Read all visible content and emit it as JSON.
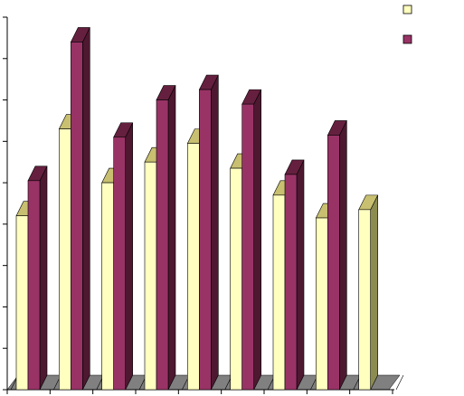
{
  "chart_data": {
    "type": "bar",
    "style": "3d-clustered-column",
    "title": "",
    "xlabel": "",
    "ylabel": "",
    "categories": [
      "",
      "",
      "",
      "",
      "",
      "",
      "",
      "",
      ""
    ],
    "ylim": [
      0,
      9
    ],
    "grid": false,
    "legend_position": "top-right",
    "series": [
      {
        "color": "#FFFFC0",
        "top_color": "#C8C070",
        "side_color": "#8C8C50",
        "values": [
          4.2,
          6.3,
          5.0,
          5.5,
          5.95,
          5.35,
          4.7,
          4.15,
          4.35
        ]
      },
      {
        "color": "#993366",
        "top_color": "#66203F",
        "side_color": "#4D1830",
        "values": [
          5.05,
          8.4,
          6.1,
          7.0,
          7.25,
          6.9,
          5.2,
          6.15,
          null
        ]
      }
    ]
  }
}
